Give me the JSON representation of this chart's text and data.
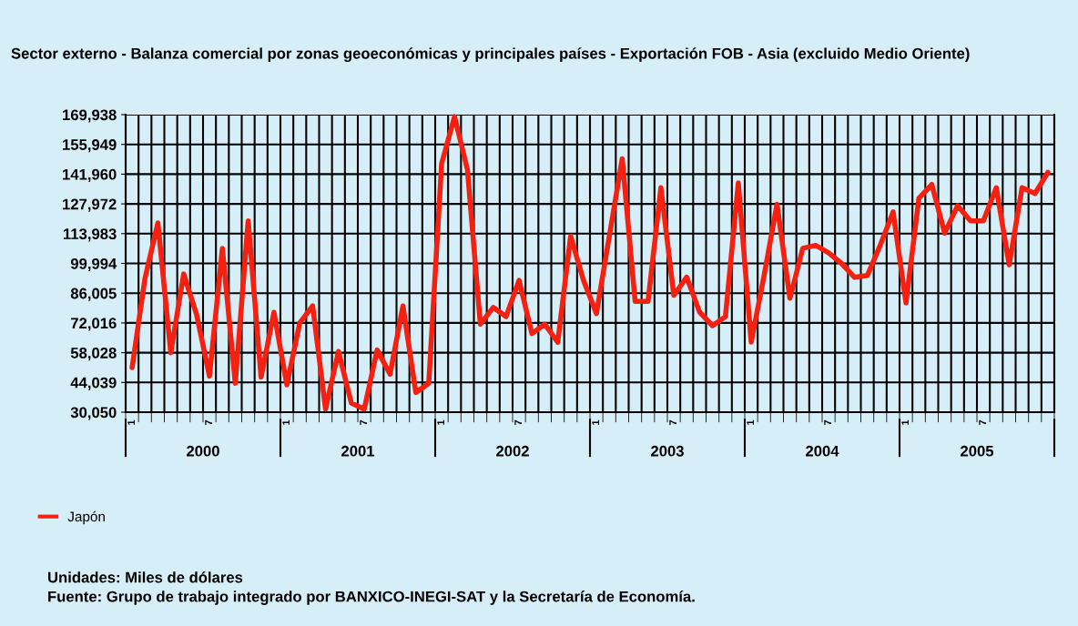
{
  "chart_data": {
    "type": "line",
    "title": "Sector externo - Balanza comercial por zonas geoeconómicas y principales países - Exportación FOB - Asia (excluido Medio Oriente)",
    "categories": [
      "1",
      null,
      null,
      null,
      null,
      null,
      "7",
      null,
      null,
      null,
      null,
      null,
      "1",
      null,
      null,
      null,
      null,
      null,
      "7",
      null,
      null,
      null,
      null,
      null,
      "1",
      null,
      null,
      null,
      null,
      null,
      "7",
      null,
      null,
      null,
      null,
      null,
      "1",
      null,
      null,
      null,
      null,
      null,
      "7",
      null,
      null,
      null,
      null,
      null,
      "1",
      null,
      null,
      null,
      null,
      null,
      "7",
      null,
      null,
      null,
      null,
      null,
      "1",
      null,
      null,
      null,
      null,
      null,
      "7",
      null,
      null,
      null,
      null,
      null
    ],
    "series": [
      {
        "name": "Japón",
        "color": "#f52010",
        "values": [
          51000,
          93000,
          119000,
          58000,
          95000,
          76000,
          47000,
          107000,
          43600,
          120000,
          46500,
          77000,
          42900,
          72000,
          80000,
          31500,
          58600,
          34300,
          31500,
          59300,
          47900,
          80000,
          39300,
          43600,
          147000,
          169000,
          144000,
          71400,
          79300,
          75000,
          92000,
          67000,
          71400,
          62900,
          112800,
          92000,
          76400,
          112800,
          149200,
          82100,
          82100,
          135600,
          85000,
          93500,
          77100,
          70700,
          75000,
          137800,
          63000,
          94300,
          127800,
          83600,
          107100,
          108500,
          105000,
          100000,
          93500,
          94300,
          108500,
          124200,
          81400,
          130600,
          137100,
          114200,
          127100,
          120000,
          120000,
          135600,
          99300,
          135600,
          132800,
          142800
        ]
      }
    ],
    "ylim": [
      30050,
      169938
    ],
    "yticks": [
      {
        "value": 30050,
        "label": "30,050"
      },
      {
        "value": 44039,
        "label": "44,039"
      },
      {
        "value": 58028,
        "label": "58,028"
      },
      {
        "value": 72016,
        "label": "72,016"
      },
      {
        "value": 86005,
        "label": "86,005"
      },
      {
        "value": 99994,
        "label": "99,994"
      },
      {
        "value": 113983,
        "label": "113,983"
      },
      {
        "value": 127972,
        "label": "127,972"
      },
      {
        "value": 141960,
        "label": "141,960"
      },
      {
        "value": 155949,
        "label": "155,949"
      },
      {
        "value": 169938,
        "label": "169,938"
      }
    ],
    "grid": true,
    "legend": "bottom left",
    "marker": "none",
    "line_style": "solid",
    "annotations": [
      "2000",
      "2001",
      "2002",
      "2003",
      "2004",
      "2005",
      "Unidades: Miles de dólares",
      "Fuente: Grupo de trabajo integrado por BANXICO-INEGI-SAT y la Secretaría de Economía."
    ]
  }
}
